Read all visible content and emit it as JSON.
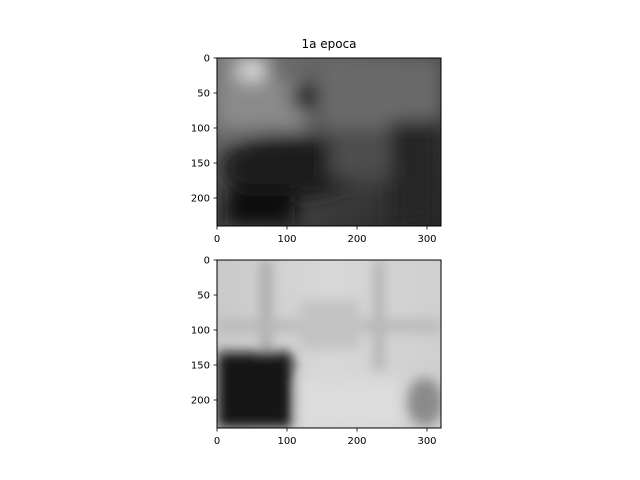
{
  "figure": {
    "title": "1a epoca"
  },
  "chart_data": [
    {
      "type": "heatmap",
      "title": "1a epoca",
      "description_tag": "grayscale image",
      "xlim": [
        0,
        320
      ],
      "ylim": [
        240,
        0
      ],
      "xticks": [
        0,
        100,
        200,
        300
      ],
      "yticks": [
        0,
        50,
        100,
        150,
        200
      ],
      "grid": false,
      "legend": "none"
    },
    {
      "type": "heatmap",
      "title": "",
      "description_tag": "grayscale image",
      "xlim": [
        0,
        320
      ],
      "ylim": [
        240,
        0
      ],
      "xticks": [
        0,
        100,
        200,
        300
      ],
      "yticks": [
        0,
        50,
        100,
        150,
        200
      ],
      "grid": false,
      "legend": "none"
    }
  ]
}
